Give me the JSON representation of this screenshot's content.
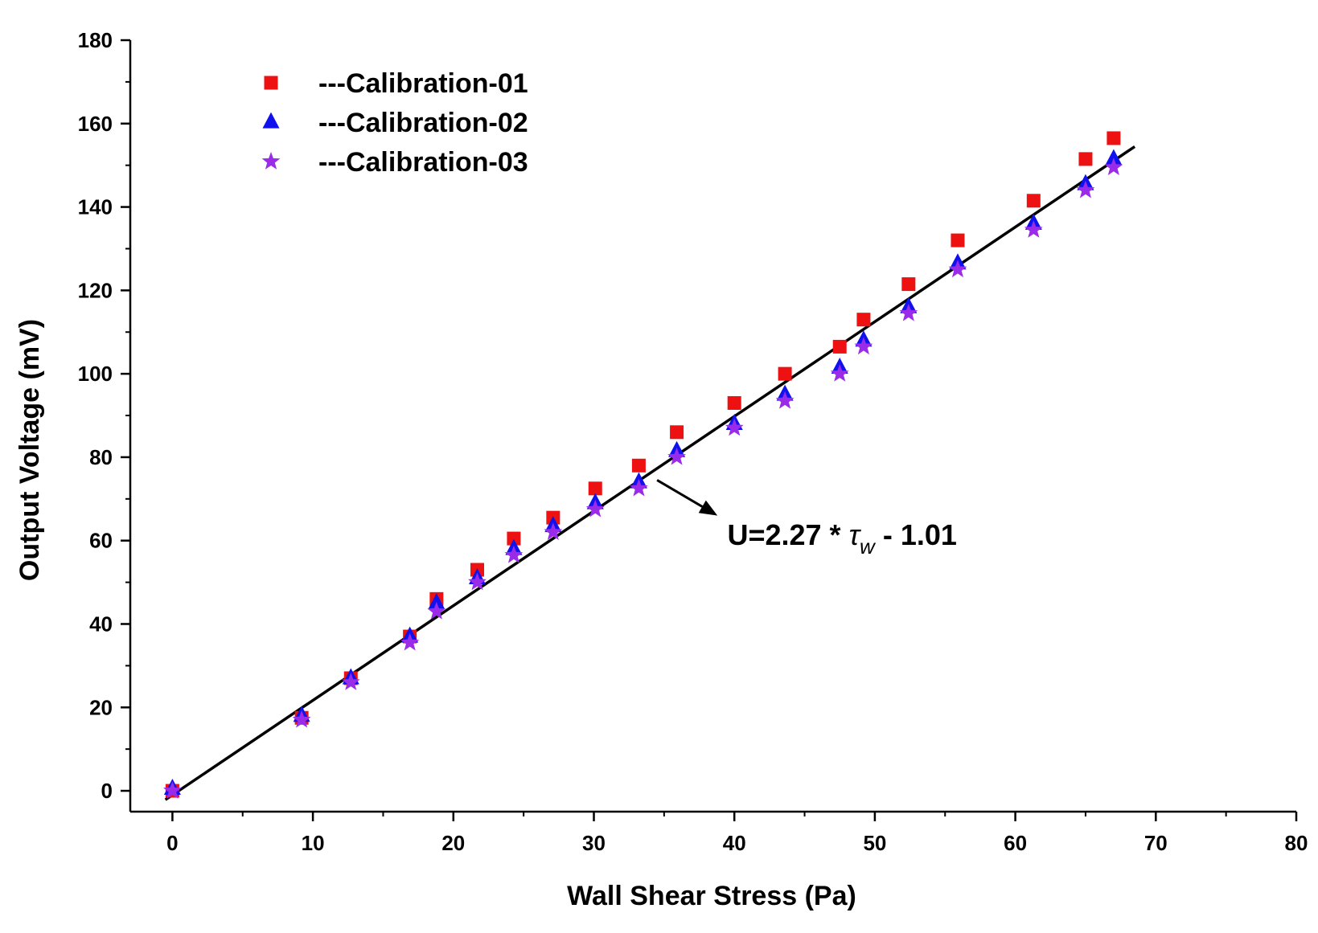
{
  "chart_data": {
    "type": "scatter",
    "xlabel": "Wall Shear Stress (Pa)",
    "ylabel": "Output Voltage (mV)",
    "xlim": [
      -3,
      80
    ],
    "ylim": [
      -5,
      180
    ],
    "xticks": [
      0,
      10,
      20,
      30,
      40,
      50,
      60,
      70,
      80
    ],
    "yticks": [
      0,
      20,
      40,
      60,
      80,
      100,
      120,
      140,
      160,
      180
    ],
    "legend_position": "top-left",
    "series": [
      {
        "name": "---Calibration-01",
        "marker": "square",
        "color": "#ee1111",
        "x": [
          0,
          9.2,
          12.7,
          16.9,
          18.8,
          21.7,
          24.3,
          27.1,
          30.1,
          33.2,
          35.9,
          40.0,
          43.6,
          47.5,
          49.2,
          52.4,
          55.9,
          61.3,
          65.0,
          67.0
        ],
        "y": [
          0,
          17.5,
          27.0,
          37.0,
          46.0,
          53.0,
          60.5,
          65.5,
          72.5,
          78.0,
          86.0,
          93.0,
          100.0,
          106.5,
          113.0,
          121.5,
          132.0,
          141.5,
          151.5,
          156.5
        ]
      },
      {
        "name": "---Calibration-02",
        "marker": "triangle",
        "color": "#1111ee",
        "x": [
          0,
          9.2,
          12.7,
          16.9,
          18.8,
          21.7,
          24.3,
          27.1,
          30.1,
          33.2,
          35.9,
          40.0,
          43.6,
          47.5,
          49.2,
          52.4,
          55.9,
          61.3,
          65.0,
          67.0
        ],
        "y": [
          0.5,
          18.0,
          27.0,
          37.0,
          45.0,
          51.0,
          58.0,
          63.5,
          69.0,
          74.0,
          81.5,
          88.0,
          95.0,
          101.5,
          108.0,
          116.0,
          126.5,
          136.0,
          145.5,
          151.5
        ]
      },
      {
        "name": "---Calibration-03",
        "marker": "star",
        "color": "#9a2be8",
        "x": [
          0,
          9.2,
          12.7,
          16.9,
          18.8,
          21.7,
          24.3,
          27.1,
          30.1,
          33.2,
          35.9,
          40.0,
          43.6,
          47.5,
          49.2,
          52.4,
          55.9,
          61.3,
          65.0,
          67.0
        ],
        "y": [
          0,
          17.0,
          26.0,
          35.5,
          43.0,
          50.0,
          56.5,
          62.0,
          67.5,
          72.5,
          80.0,
          87.0,
          93.5,
          100.0,
          106.5,
          114.5,
          125.0,
          134.5,
          144.0,
          149.5
        ]
      }
    ],
    "fit_line": {
      "slope": 2.27,
      "intercept": -1.01,
      "x_range": [
        -0.5,
        68.5
      ],
      "color": "#000000"
    },
    "annotation": {
      "prefix": "U=2.27 * ",
      "symbol": "τ",
      "subscript": "w",
      "suffix": " - 1.01",
      "arrow_from": [
        34.5,
        74.5
      ],
      "arrow_to": [
        38.8,
        66.0
      ],
      "text_anchor": [
        39.5,
        59.0
      ]
    }
  }
}
